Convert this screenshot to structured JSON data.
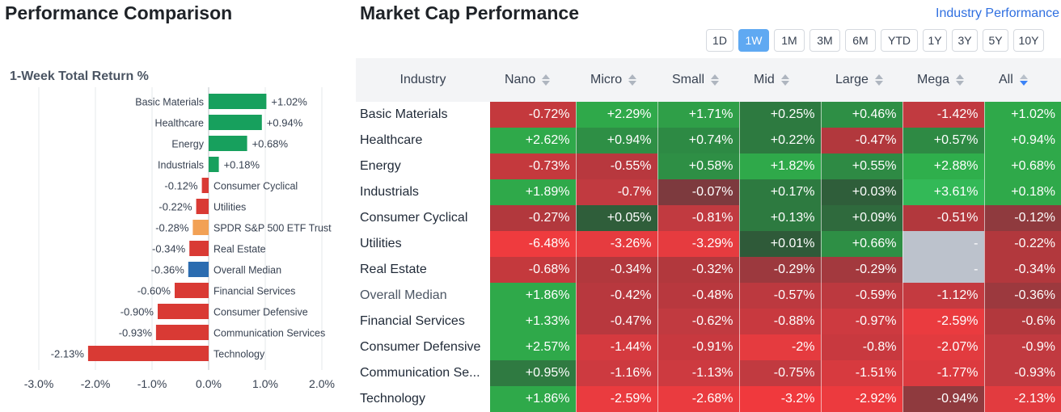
{
  "performance": {
    "title": "Performance Comparison",
    "chart_data": {
      "type": "bar",
      "orientation": "horizontal",
      "subtitle": "1-Week Total Return %",
      "xlim": [
        -3,
        2
      ],
      "x_ticks": [
        "-3.0%",
        "-2.0%",
        "-1.0%",
        "0.0%",
        "1.0%",
        "2.0%"
      ],
      "categories": [
        "Basic Materials",
        "Healthcare",
        "Energy",
        "Industrials",
        "Consumer Cyclical",
        "Utilities",
        "SPDR S&P 500 ETF Trust",
        "Real Estate",
        "Overall Median",
        "Financial Services",
        "Consumer Defensive",
        "Communication Services",
        "Technology"
      ],
      "values": [
        1.02,
        0.94,
        0.68,
        0.18,
        -0.12,
        -0.22,
        -0.28,
        -0.34,
        -0.36,
        -0.6,
        -0.9,
        -0.93,
        -2.13
      ],
      "labels": [
        "+1.02%",
        "+0.94%",
        "+0.68%",
        "+0.18%",
        "-0.12%",
        "-0.22%",
        "-0.28%",
        "-0.34%",
        "-0.36%",
        "-0.60%",
        "-0.90%",
        "-0.93%",
        "-2.13%"
      ],
      "colors": [
        "#17a05d",
        "#17a05d",
        "#17a05d",
        "#17a05d",
        "#d93a34",
        "#d93a34",
        "#f2a155",
        "#d93a34",
        "#2b6cb0",
        "#d93a34",
        "#d93a34",
        "#d93a34",
        "#d93a34"
      ]
    }
  },
  "market_cap": {
    "title": "Market Cap Performance",
    "link": "Industry Performance",
    "tabs": [
      {
        "label": "1D",
        "active": false
      },
      {
        "label": "1W",
        "active": true
      },
      {
        "label": "1M",
        "active": false
      },
      {
        "label": "3M",
        "active": false
      },
      {
        "label": "6M",
        "active": false
      },
      {
        "label": "YTD",
        "active": false
      },
      {
        "label": "1Y",
        "active": false
      },
      {
        "label": "3Y",
        "active": false
      },
      {
        "label": "5Y",
        "active": false
      },
      {
        "label": "10Y",
        "active": false
      }
    ],
    "columns": [
      "Industry",
      "Nano",
      "Micro",
      "Small",
      "Mid",
      "Large",
      "Mega",
      "All"
    ],
    "sorted_column": "All",
    "rows": [
      {
        "name": "Basic Materials",
        "values": [
          "-0.72%",
          "+2.29%",
          "+1.71%",
          "+0.25%",
          "+0.46%",
          "-1.42%",
          "+1.02%"
        ]
      },
      {
        "name": "Healthcare",
        "values": [
          "+2.62%",
          "+0.94%",
          "+0.74%",
          "+0.22%",
          "-0.47%",
          "+0.57%",
          "+0.94%"
        ]
      },
      {
        "name": "Energy",
        "values": [
          "-0.73%",
          "-0.55%",
          "+0.58%",
          "+1.82%",
          "+0.55%",
          "+2.88%",
          "+0.68%"
        ]
      },
      {
        "name": "Industrials",
        "values": [
          "+1.89%",
          "-0.7%",
          "-0.07%",
          "+0.17%",
          "+0.03%",
          "+3.61%",
          "+0.18%"
        ]
      },
      {
        "name": "Consumer Cyclical",
        "values": [
          "-0.27%",
          "+0.05%",
          "-0.81%",
          "+0.13%",
          "+0.09%",
          "-0.51%",
          "-0.12%"
        ]
      },
      {
        "name": "Utilities",
        "values": [
          "-6.48%",
          "-3.26%",
          "-3.29%",
          "+0.01%",
          "+0.66%",
          "-",
          "-0.22%"
        ]
      },
      {
        "name": "Real Estate",
        "values": [
          "-0.68%",
          "-0.34%",
          "-0.32%",
          "-0.29%",
          "-0.29%",
          "-",
          "-0.34%"
        ]
      },
      {
        "name": "Overall Median",
        "values": [
          "+1.86%",
          "-0.42%",
          "-0.48%",
          "-0.57%",
          "-0.59%",
          "-1.12%",
          "-0.36%"
        ]
      },
      {
        "name": "Financial Services",
        "values": [
          "+1.33%",
          "-0.47%",
          "-0.62%",
          "-0.88%",
          "-0.97%",
          "-2.59%",
          "-0.6%"
        ]
      },
      {
        "name": "Consumer Defensive",
        "values": [
          "+2.57%",
          "-1.44%",
          "-0.91%",
          "-2%",
          "-0.8%",
          "-2.07%",
          "-0.9%"
        ]
      },
      {
        "name": "Communication Se...",
        "values": [
          "+0.95%",
          "-1.16%",
          "-1.13%",
          "-0.75%",
          "-1.51%",
          "-1.77%",
          "-0.93%"
        ]
      },
      {
        "name": "Technology",
        "values": [
          "+1.86%",
          "-2.59%",
          "-2.68%",
          "-3.2%",
          "-2.92%",
          "-0.94%",
          "-2.13%"
        ]
      }
    ],
    "cell_colors": [
      [
        "#c4393d",
        "#2fa94a",
        "#2f9f48",
        "#2d7a40",
        "#2e8f45",
        "#c13a40",
        "#2fa94a"
      ],
      [
        "#2fa94a",
        "#2e8f45",
        "#2d8a44",
        "#2d7a40",
        "#b2383d",
        "#2e8a44",
        "#2fa94a"
      ],
      [
        "#c4393d",
        "#b8383e",
        "#2e8f45",
        "#2fa94a",
        "#2e8a44",
        "#2faf4c",
        "#2fa94a"
      ],
      [
        "#2fa94a",
        "#c13a40",
        "#7d3a3e",
        "#2d7a40",
        "#2f5e3a",
        "#33b957",
        "#2fa94a"
      ],
      [
        "#b2383d",
        "#2f5e3a",
        "#c13a40",
        "#2d7a40",
        "#2f6a3d",
        "#b2383d",
        "#8f3a3e"
      ],
      [
        "#ef3b3e",
        "#e63b3f",
        "#e63b3f",
        "#2f5a39",
        "#2e8f45",
        "#bcc2cc",
        "#b2383d"
      ],
      [
        "#c4393d",
        "#b2383d",
        "#b2383d",
        "#9c393e",
        "#a3393e",
        "#bcc2cc",
        "#b2383d"
      ],
      [
        "#2fa94a",
        "#b8383e",
        "#b8383e",
        "#bc393f",
        "#bc393f",
        "#c43a40",
        "#9c393e"
      ],
      [
        "#2fa94a",
        "#b8383e",
        "#c13a40",
        "#c8393f",
        "#cd3a40",
        "#ea3b3f",
        "#b2383d"
      ],
      [
        "#2fa94a",
        "#d53a3f",
        "#c8393f",
        "#e53b3f",
        "#c8393f",
        "#e23b3f",
        "#c13a40"
      ],
      [
        "#2f7a41",
        "#cd3a40",
        "#cd3a40",
        "#c13a40",
        "#d73a3f",
        "#dc3a3f",
        "#c13a40"
      ],
      [
        "#2fa94a",
        "#ea3b3f",
        "#ea3b3f",
        "#f0393d",
        "#ec3a3e",
        "#8f3a3e",
        "#e23b3f"
      ]
    ]
  }
}
